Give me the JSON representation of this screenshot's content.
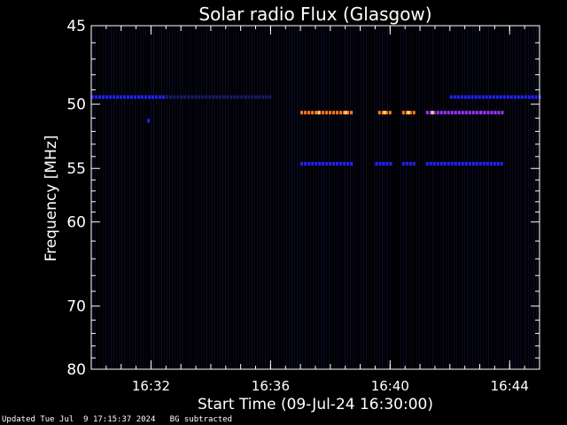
{
  "chart_data": {
    "type": "heatmap",
    "title": "Solar radio Flux (Glasgow)",
    "xlabel": "Start Time (09-Jul-24 16:30:00)",
    "ylabel": "Frequency [MHz]",
    "x_unit": "minutes after 16:30:00",
    "xlim": [
      0,
      15
    ],
    "ylim": [
      80,
      45
    ],
    "x_ticks": [
      {
        "value": 2,
        "label": "16:32"
      },
      {
        "value": 6,
        "label": "16:36"
      },
      {
        "value": 10,
        "label": "16:40"
      },
      {
        "value": 14,
        "label": "16:44"
      }
    ],
    "y_ticks": [
      {
        "value": 45,
        "label": "45"
      },
      {
        "value": 50,
        "label": "50"
      },
      {
        "value": 55,
        "label": "55"
      },
      {
        "value": 60,
        "label": "60"
      },
      {
        "value": 70,
        "label": "70"
      },
      {
        "value": 80,
        "label": "80"
      }
    ],
    "colors": {
      "background": "#000000",
      "faint": "#1a1a66",
      "weak": "#2222ff",
      "medium": "#9a33ff",
      "strong": "#ff7a1a",
      "peak": "#ffd27a"
    },
    "bands": [
      {
        "freq": 49.5,
        "start": 0.0,
        "end": 2.5,
        "level": "weak"
      },
      {
        "freq": 49.5,
        "start": 2.5,
        "end": 6.0,
        "level": "faint"
      },
      {
        "freq": 49.5,
        "start": 12.0,
        "end": 15.0,
        "level": "weak"
      },
      {
        "freq": 50.6,
        "start": 7.0,
        "end": 8.7,
        "level": "strong"
      },
      {
        "freq": 50.6,
        "start": 9.6,
        "end": 10.0,
        "level": "strong"
      },
      {
        "freq": 50.6,
        "start": 10.4,
        "end": 10.8,
        "level": "strong"
      },
      {
        "freq": 50.6,
        "start": 11.2,
        "end": 13.0,
        "level": "medium"
      },
      {
        "freq": 50.6,
        "start": 13.0,
        "end": 13.8,
        "level": "medium"
      },
      {
        "freq": 54.6,
        "start": 7.0,
        "end": 8.7,
        "level": "weak"
      },
      {
        "freq": 54.6,
        "start": 9.5,
        "end": 10.0,
        "level": "weak"
      },
      {
        "freq": 54.6,
        "start": 10.4,
        "end": 10.8,
        "level": "weak"
      },
      {
        "freq": 54.6,
        "start": 11.2,
        "end": 13.8,
        "level": "weak"
      }
    ],
    "spots": [
      {
        "time": 1.9,
        "freq": 51.2,
        "level": "weak"
      },
      {
        "time": 7.6,
        "freq": 50.6,
        "level": "peak"
      },
      {
        "time": 8.5,
        "freq": 50.6,
        "level": "peak"
      },
      {
        "time": 9.8,
        "freq": 50.6,
        "level": "peak"
      },
      {
        "time": 10.6,
        "freq": 50.6,
        "level": "peak"
      },
      {
        "time": 11.4,
        "freq": 50.6,
        "level": "peak"
      }
    ]
  },
  "footer": {
    "updated": "Updated Tue Jul  9 17:15:37 2024",
    "note": "BG subtracted"
  }
}
